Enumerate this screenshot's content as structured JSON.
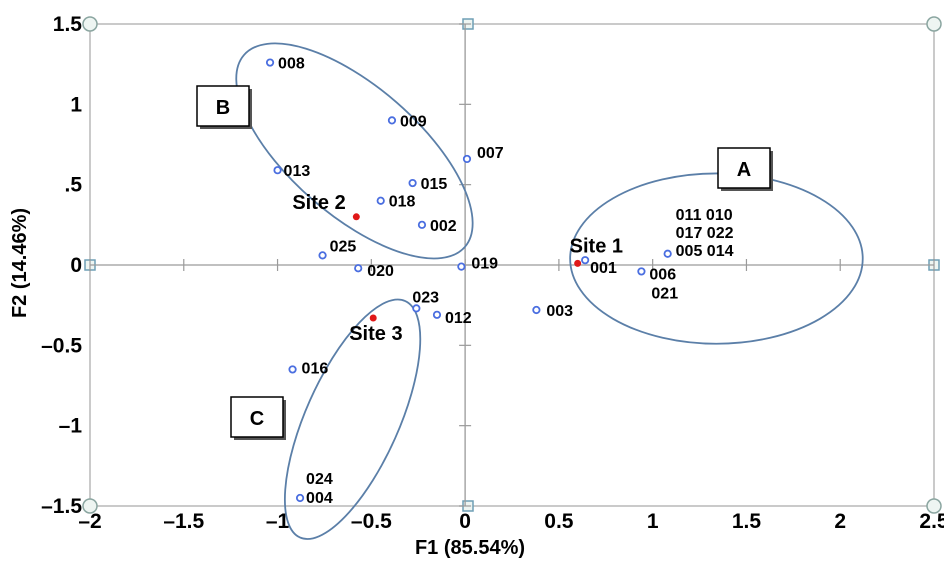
{
  "chart_data": {
    "type": "scatter",
    "xlabel": "F1 (85.54%)",
    "ylabel": "F2 (14.46%)",
    "xlim": [
      -2,
      2.5
    ],
    "ylim": [
      -1.5,
      1.5
    ],
    "xticks": [
      {
        "v": -2,
        "label": "–2"
      },
      {
        "v": -1.5,
        "label": "–1.5"
      },
      {
        "v": -1,
        "label": "–1"
      },
      {
        "v": -0.5,
        "label": "–0.5"
      },
      {
        "v": 0,
        "label": "0"
      },
      {
        "v": 0.5,
        "label": "0.5"
      },
      {
        "v": 1,
        "label": "1"
      },
      {
        "v": 1.5,
        "label": "1.5"
      },
      {
        "v": 2,
        "label": "2"
      },
      {
        "v": 2.5,
        "label": "2.5"
      }
    ],
    "yticks": [
      {
        "v": 1.5,
        "label": "1.5"
      },
      {
        "v": 1,
        "label": "1"
      },
      {
        "v": 0.5,
        "label": ".5"
      },
      {
        "v": 0,
        "label": "0"
      },
      {
        "v": -0.5,
        "label": "–0.5"
      },
      {
        "v": -1,
        "label": "–1"
      },
      {
        "v": -1.5,
        "label": "–1.5"
      }
    ],
    "grid": false,
    "series": [
      {
        "color": "#4a6ee0",
        "points": [
          {
            "label": "008",
            "x": -1.04,
            "y": 1.26
          },
          {
            "label": "009",
            "x": -0.39,
            "y": 0.9
          },
          {
            "label": "007",
            "x": 0.01,
            "y": 0.66
          },
          {
            "label": "013",
            "x": -1.0,
            "y": 0.59
          },
          {
            "label": "015",
            "x": -0.28,
            "y": 0.51
          },
          {
            "label": "018",
            "x": -0.45,
            "y": 0.4
          },
          {
            "label": "002",
            "x": -0.23,
            "y": 0.25
          },
          {
            "label": "025",
            "x": -0.76,
            "y": 0.06
          },
          {
            "label": "020",
            "x": -0.57,
            "y": -0.02
          },
          {
            "label": "019",
            "x": -0.02,
            "y": -0.01
          },
          {
            "label": "023",
            "x": -0.26,
            "y": -0.27
          },
          {
            "label": "012",
            "x": -0.15,
            "y": -0.31
          },
          {
            "label": "003",
            "x": 0.38,
            "y": -0.28
          },
          {
            "label": "016",
            "x": -0.92,
            "y": -0.65
          },
          {
            "label": "024 004",
            "x": -0.88,
            "y": -1.45
          },
          {
            "label": "001",
            "x": 0.64,
            "y": 0.03
          },
          {
            "label": "006 021",
            "x": 0.94,
            "y": -0.04
          },
          {
            "label": "011 010 017 022 005 014",
            "x": 1.08,
            "y": 0.07
          }
        ]
      },
      {
        "color": "#e01818",
        "points": [
          {
            "label": "Site 1",
            "x": 0.6,
            "y": 0.01
          },
          {
            "label": "Site 2",
            "x": -0.58,
            "y": 0.3
          },
          {
            "label": "Site 3",
            "x": -0.49,
            "y": -0.33
          }
        ]
      }
    ],
    "groups": [
      {
        "label": "A",
        "cx": 1.34,
        "cy": 0.04,
        "rx": 0.78,
        "ry": 0.53,
        "rotate": 0
      },
      {
        "label": "B",
        "cx": -0.59,
        "cy": 0.71,
        "rx": 0.78,
        "ry": 0.4,
        "rotate": 41
      },
      {
        "label": "C",
        "cx": -0.6,
        "cy": -0.96,
        "rx": 0.69,
        "ry": 0.29,
        "rotate": -66
      }
    ]
  }
}
